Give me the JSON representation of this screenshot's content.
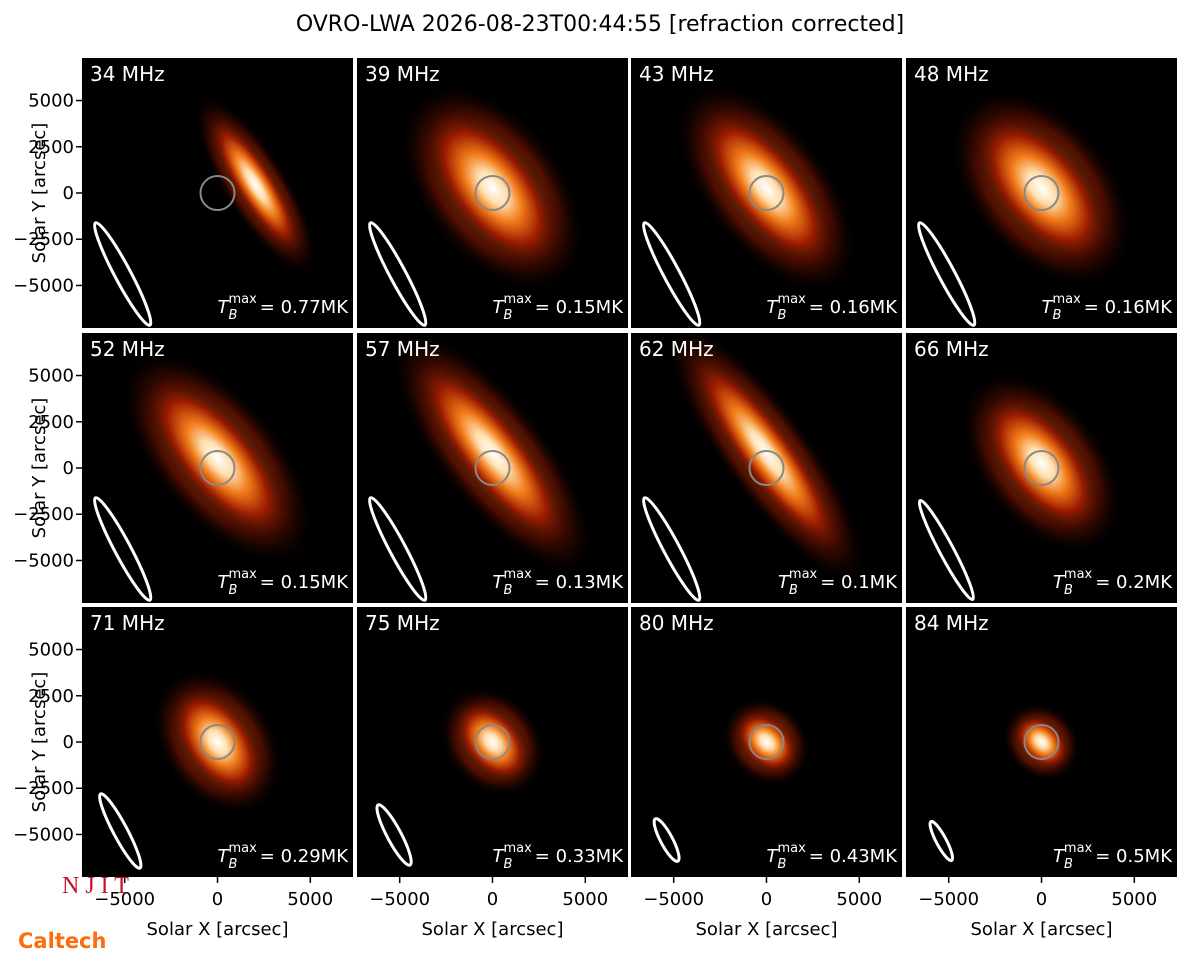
{
  "title": "OVRO-LWA 2026-08-23T00:44:55 [refraction corrected]",
  "axes": {
    "xlabel": "Solar X [arcsec]",
    "ylabel": "Solar Y [arcsec]",
    "xlim": [
      -7300,
      7300
    ],
    "ylim": [
      -7300,
      7300
    ],
    "xticks": [
      {
        "value": -5000,
        "label": "−5000"
      },
      0,
      5000
    ],
    "yticks": [
      {
        "value": -5000,
        "label": "−5000"
      },
      {
        "value": -2500,
        "label": "−2500"
      },
      0,
      2500,
      5000
    ]
  },
  "tb_symbol": {
    "main": "T",
    "sub": "B",
    "sup": "max"
  },
  "chart_data": [
    {
      "type": "image",
      "title": "34 MHz",
      "tb_max": 0.77,
      "tb_max_label": "= 0.77MK"
    },
    {
      "type": "image",
      "title": "39 MHz",
      "tb_max": 0.15,
      "tb_max_label": "= 0.15MK"
    },
    {
      "type": "image",
      "title": "43 MHz",
      "tb_max": 0.16,
      "tb_max_label": "= 0.16MK"
    },
    {
      "type": "image",
      "title": "48 MHz",
      "tb_max": 0.16,
      "tb_max_label": "= 0.16MK"
    },
    {
      "type": "image",
      "title": "52 MHz",
      "tb_max": 0.15,
      "tb_max_label": "= 0.15MK"
    },
    {
      "type": "image",
      "title": "57 MHz",
      "tb_max": 0.13,
      "tb_max_label": "= 0.13MK"
    },
    {
      "type": "image",
      "title": "62 MHz",
      "tb_max": 0.1,
      "tb_max_label": "= 0.1MK"
    },
    {
      "type": "image",
      "title": "66 MHz",
      "tb_max": 0.2,
      "tb_max_label": "= 0.2MK"
    },
    {
      "type": "image",
      "title": "71 MHz",
      "tb_max": 0.29,
      "tb_max_label": "= 0.29MK"
    },
    {
      "type": "image",
      "title": "75 MHz",
      "tb_max": 0.33,
      "tb_max_label": "= 0.33MK"
    },
    {
      "type": "image",
      "title": "80 MHz",
      "tb_max": 0.43,
      "tb_max_label": "= 0.43MK"
    },
    {
      "type": "image",
      "title": "84 MHz",
      "tb_max": 0.5,
      "tb_max_label": "= 0.5MK"
    }
  ],
  "logos": {
    "top": "N J I T",
    "bottom": "Caltech"
  }
}
